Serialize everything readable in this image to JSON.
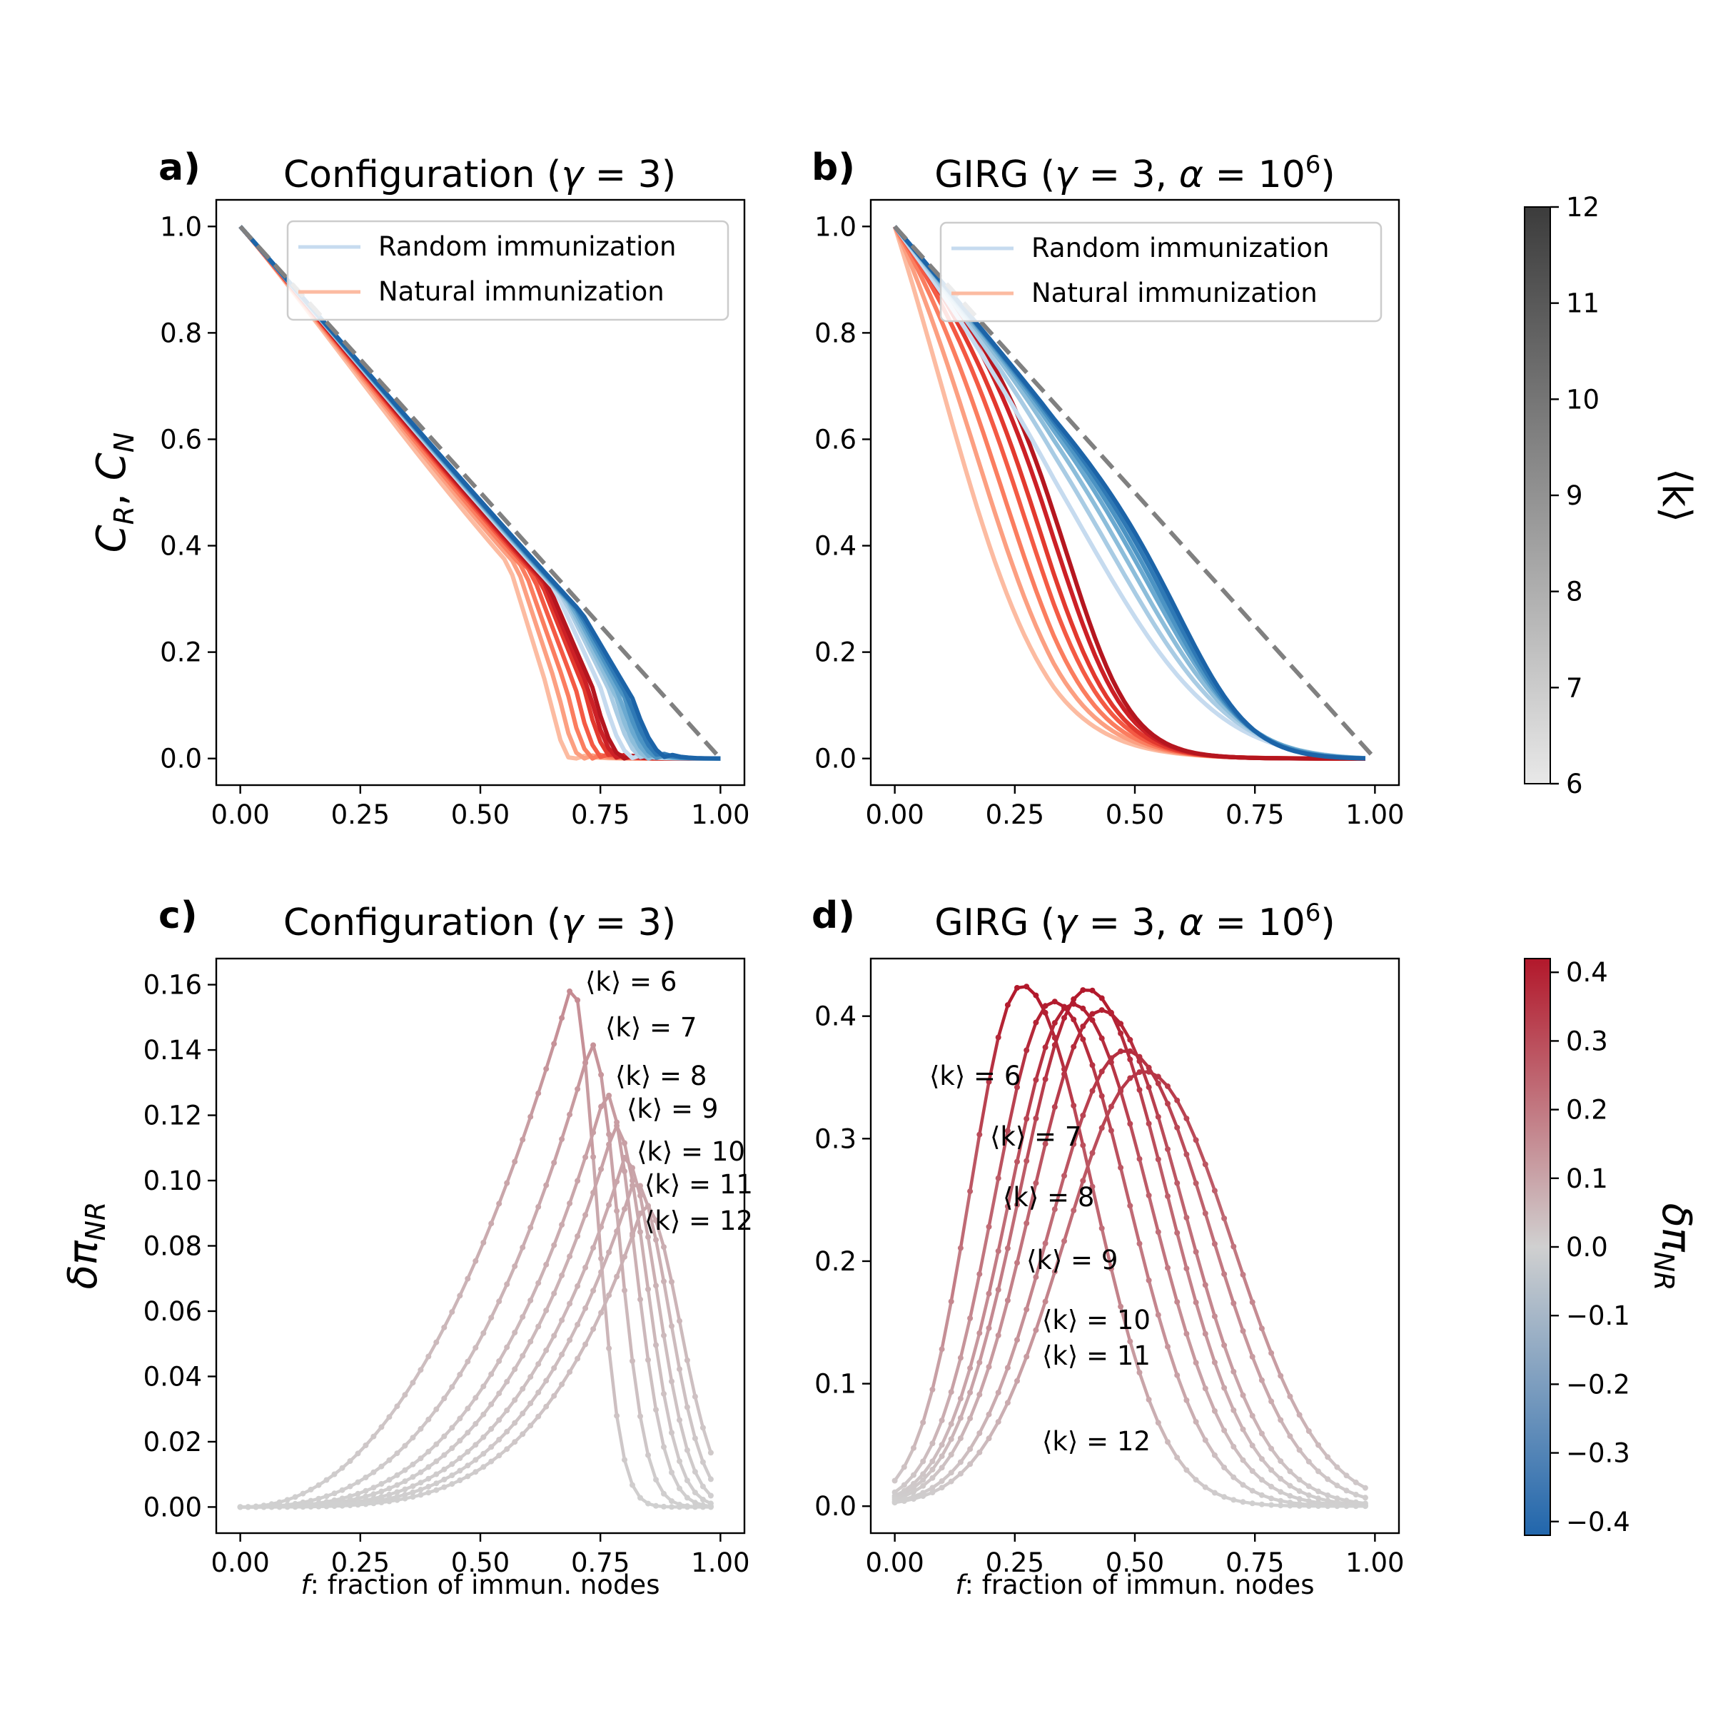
{
  "chart_data": [
    {
      "type": "line",
      "panel_label": "a)",
      "title": "Configuration (γ = 3)",
      "ylabel": "C_R, C_N",
      "ylabel_display": "C_R, C_N",
      "xlabel": "",
      "xlim": [
        -0.05,
        1.05
      ],
      "ylim": [
        -0.05,
        1.05
      ],
      "xticks": [
        "0.00",
        "0.25",
        "0.50",
        "0.75",
        "1.00"
      ],
      "yticks": [
        "0.0",
        "0.2",
        "0.4",
        "0.6",
        "0.8",
        "1.0"
      ],
      "legend": {
        "position": "top-right",
        "entries": [
          "Random immunization",
          "Natural immunization"
        ],
        "colors": [
          "#c6dbef",
          "#fcbba1"
        ]
      },
      "reference_line": {
        "style": "dashed",
        "color": "#808080",
        "from": [
          0,
          1
        ],
        "to": [
          1,
          0
        ]
      },
      "k_values": [
        6,
        7,
        8,
        9,
        10,
        11,
        12
      ],
      "random_series": {
        "end_f": [
          0.82,
          0.84,
          0.85,
          0.86,
          0.87,
          0.88,
          0.89
        ],
        "sag": [
          0.09,
          0.085,
          0.08,
          0.075,
          0.07,
          0.065,
          0.06
        ]
      },
      "natural_series": {
        "end_f": [
          0.7,
          0.72,
          0.74,
          0.76,
          0.78,
          0.79,
          0.8
        ],
        "sag": [
          0.2,
          0.17,
          0.15,
          0.13,
          0.12,
          0.11,
          0.1
        ]
      }
    },
    {
      "type": "line",
      "panel_label": "b)",
      "title": "GIRG (γ = 3, α = 10^6)",
      "xlabel": "",
      "xlim": [
        -0.05,
        1.05
      ],
      "ylim": [
        -0.05,
        1.05
      ],
      "xticks": [
        "0.00",
        "0.25",
        "0.50",
        "0.75",
        "1.00"
      ],
      "yticks": [
        "0.0",
        "0.2",
        "0.4",
        "0.6",
        "0.8",
        "1.0"
      ],
      "legend": {
        "position": "top-right",
        "entries": [
          "Random immunization",
          "Natural immunization"
        ],
        "colors": [
          "#c6dbef",
          "#fcbba1"
        ]
      },
      "reference_line": {
        "style": "dashed",
        "color": "#808080",
        "from": [
          0,
          1
        ],
        "to": [
          1,
          0
        ]
      },
      "k_values": [
        6,
        7,
        8,
        9,
        10,
        11,
        12
      ],
      "random_series": {
        "f_half": [
          0.52,
          0.57,
          0.6,
          0.62,
          0.63,
          0.64,
          0.65
        ],
        "steep": [
          7,
          8,
          9,
          10,
          11,
          12,
          13
        ]
      },
      "natural_series": {
        "f_half": [
          0.15,
          0.22,
          0.27,
          0.31,
          0.34,
          0.37,
          0.39
        ],
        "steep": [
          9,
          10,
          11,
          12,
          13,
          14,
          15
        ]
      }
    },
    {
      "type": "line",
      "panel_label": "c)",
      "title": "Configuration (γ = 3)",
      "ylabel": "δπ_NR",
      "xlabel": "f: fraction of immun. nodes",
      "xlim": [
        -0.05,
        1.05
      ],
      "ylim": [
        -0.008,
        0.168
      ],
      "xticks": [
        "0.00",
        "0.25",
        "0.50",
        "0.75",
        "1.00"
      ],
      "yticks": [
        "0.00",
        "0.02",
        "0.04",
        "0.06",
        "0.08",
        "0.10",
        "0.12",
        "0.14",
        "0.16"
      ],
      "series": [
        {
          "name": "⟨k⟩ = 6",
          "peak_f": 0.69,
          "peak": 0.16
        },
        {
          "name": "⟨k⟩ = 7",
          "peak_f": 0.73,
          "peak": 0.142
        },
        {
          "name": "⟨k⟩ = 8",
          "peak_f": 0.76,
          "peak": 0.127
        },
        {
          "name": "⟨k⟩ = 9",
          "peak_f": 0.78,
          "peak": 0.117
        },
        {
          "name": "⟨k⟩ = 10",
          "peak_f": 0.8,
          "peak": 0.107
        },
        {
          "name": "⟨k⟩ = 11",
          "peak_f": 0.82,
          "peak": 0.1
        },
        {
          "name": "⟨k⟩ = 12",
          "peak_f": 0.84,
          "peak": 0.093
        }
      ],
      "annotations": [
        "⟨k⟩ = 6",
        "⟨k⟩ = 7",
        "⟨k⟩ = 8",
        "⟨k⟩ = 9",
        "⟨k⟩ = 10",
        "⟨k⟩ = 11",
        "⟨k⟩ = 12"
      ]
    },
    {
      "type": "line",
      "panel_label": "d)",
      "title": "GIRG (γ = 3, α = 10^6)",
      "xlabel": "f: fraction of immun. nodes",
      "xlim": [
        -0.05,
        1.05
      ],
      "ylim": [
        -0.022,
        0.447
      ],
      "xticks": [
        "0.00",
        "0.25",
        "0.50",
        "0.75",
        "1.00"
      ],
      "yticks": [
        "0.0",
        "0.1",
        "0.2",
        "0.3",
        "0.4"
      ],
      "series": [
        {
          "name": "⟨k⟩ = 6",
          "peak_f": 0.265,
          "peak": 0.425
        },
        {
          "name": "⟨k⟩ = 7",
          "peak_f": 0.33,
          "peak": 0.412
        },
        {
          "name": "⟨k⟩ = 8",
          "peak_f": 0.37,
          "peak": 0.41
        },
        {
          "name": "⟨k⟩ = 9",
          "peak_f": 0.4,
          "peak": 0.422
        },
        {
          "name": "⟨k⟩ = 10",
          "peak_f": 0.43,
          "peak": 0.405
        },
        {
          "name": "⟨k⟩ = 11",
          "peak_f": 0.48,
          "peak": 0.372
        },
        {
          "name": "⟨k⟩ = 12",
          "peak_f": 0.52,
          "peak": 0.355
        }
      ],
      "annotations": [
        "⟨k⟩ = 6",
        "⟨k⟩ = 7",
        "⟨k⟩ = 8",
        "⟨k⟩ = 9",
        "⟨k⟩ = 10",
        "⟨k⟩ = 11",
        "⟨k⟩ = 12"
      ]
    }
  ],
  "colorbars": [
    {
      "label": "⟨k⟩",
      "ticks": [
        "6",
        "7",
        "8",
        "9",
        "10",
        "11",
        "12"
      ],
      "range": [
        6,
        12
      ],
      "colors": [
        "#e8e8e8",
        "#3c3c3c"
      ]
    },
    {
      "label": "δπ_NR",
      "ticks": [
        "−0.4",
        "−0.3",
        "−0.2",
        "−0.1",
        "0.0",
        "0.1",
        "0.2",
        "0.3",
        "0.4"
      ],
      "range": [
        -0.42,
        0.42
      ],
      "colors": [
        "#2166ac",
        "#d0d0d0",
        "#b2182b"
      ]
    }
  ]
}
